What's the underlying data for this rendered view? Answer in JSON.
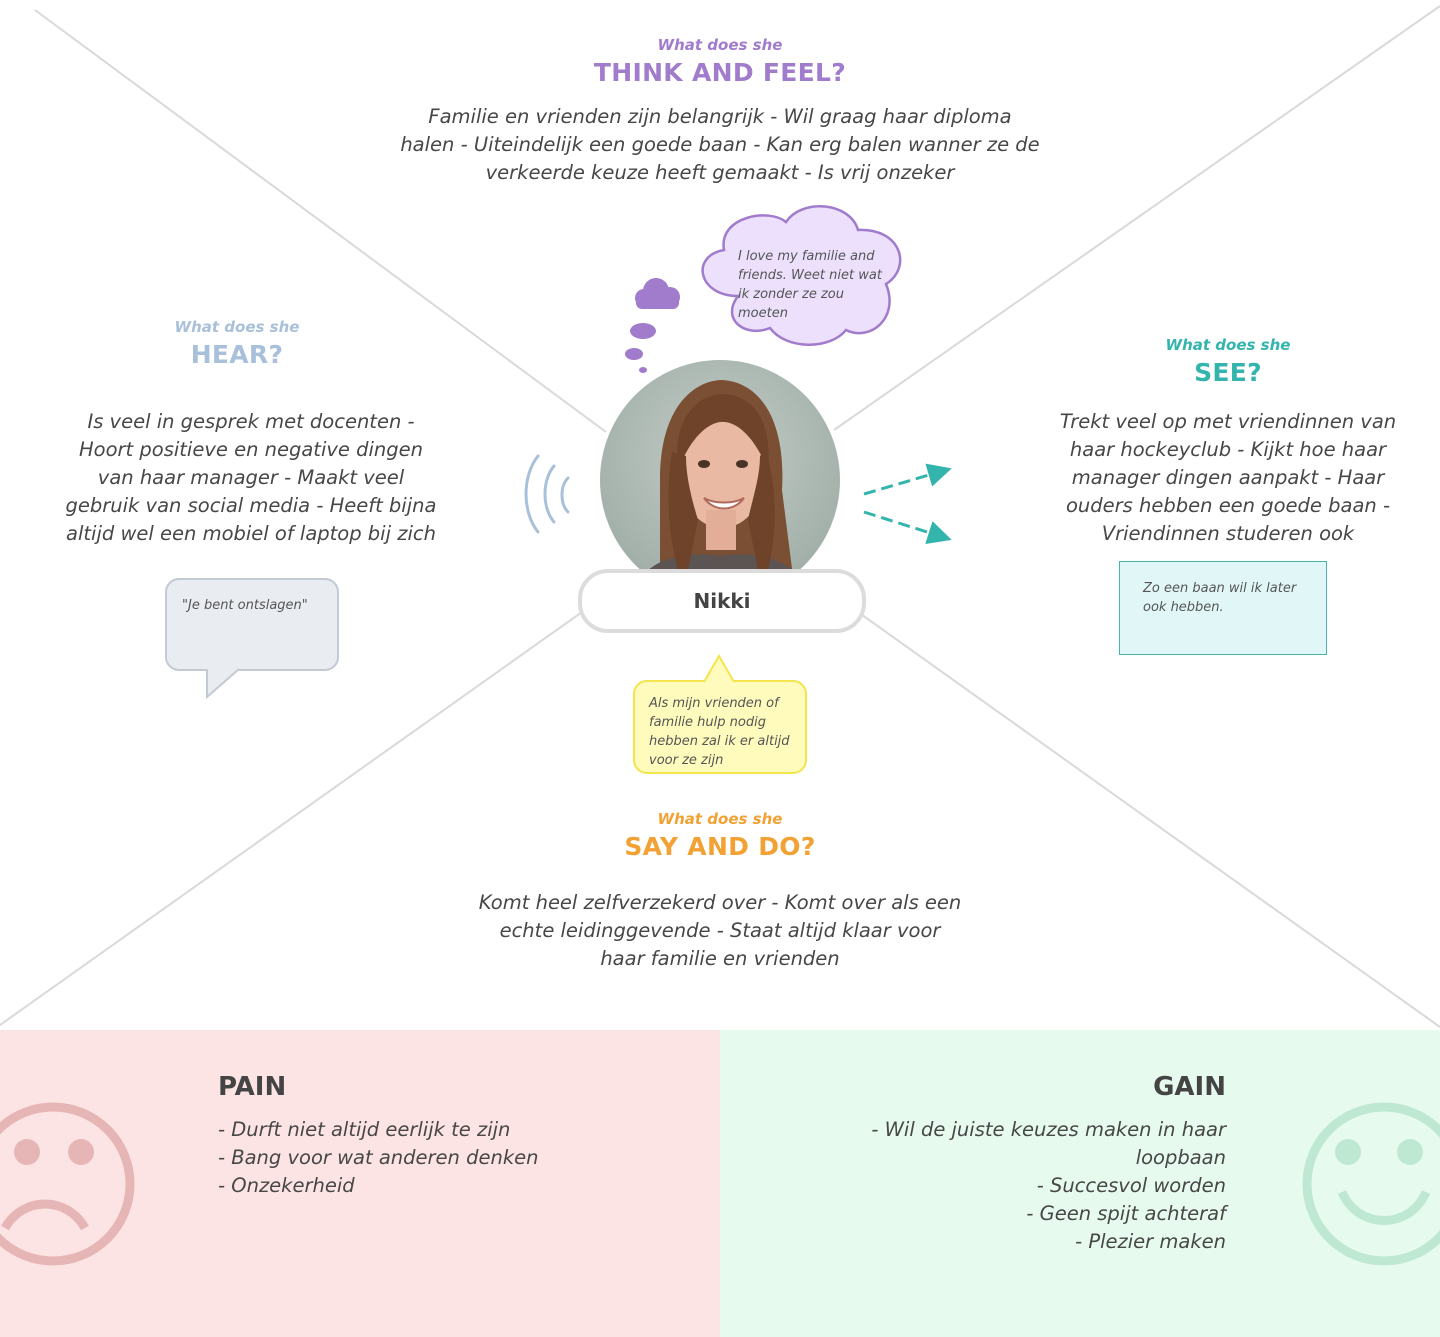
{
  "persona": {
    "name": "Nikki"
  },
  "think": {
    "kicker": "What does she",
    "heading": "THINK AND FEEL?",
    "text": "Familie en vrienden zijn belangrijk - Wil graag haar diploma halen - Uiteindelijk een goede baan - Kan erg balen wanner ze de verkeerde keuze heeft gemaakt - Is vrij onzeker",
    "bubble": "I love my familie and friends. Weet niet wat ik zonder ze zou moeten",
    "color": "#a17bcc"
  },
  "hear": {
    "kicker": "What does she",
    "heading": "HEAR?",
    "text": "Is veel in gesprek met docenten - Hoort positieve en negative dingen van haar manager - Maakt veel gebruik van social media - Heeft bijna altijd wel een mobiel of laptop bij zich",
    "bubble": "\"Je bent ontslagen\"",
    "color": "#a9c0da"
  },
  "see": {
    "kicker": "What does she",
    "heading": "SEE?",
    "text": "Trekt veel op met vriendinnen van haar hockeyclub - Kijkt hoe haar manager dingen aanpakt - Haar ouders hebben een goede baan - Vriendinnen studeren ook",
    "note": "Zo een baan wil ik later ook hebben.",
    "color": "#33b4ad"
  },
  "say": {
    "kicker": "What does she",
    "heading": "SAY AND DO?",
    "text": "Komt heel zelfverzekerd over - Komt over als een echte leidinggevende - Staat altijd klaar voor haar familie en vrienden",
    "bubble": "Als mijn vrienden of familie hulp nodig hebben zal ik er altijd voor ze zijn",
    "color": "#f2a234"
  },
  "pain": {
    "title": "PAIN",
    "items": [
      "- Durft niet altijd eerlijk te zijn",
      "- Bang voor wat anderen denken",
      "- Onzekerheid"
    ],
    "color": "#fde4e4",
    "icon": "sad-face-icon"
  },
  "gain": {
    "title": "GAIN",
    "items": [
      "- Wil de juiste keuzes maken in haar loopbaan",
      "- Succesvol worden",
      "- Geen spijt achteraf",
      "- Plezier maken"
    ],
    "color": "#e6fbee",
    "icon": "happy-face-icon"
  }
}
